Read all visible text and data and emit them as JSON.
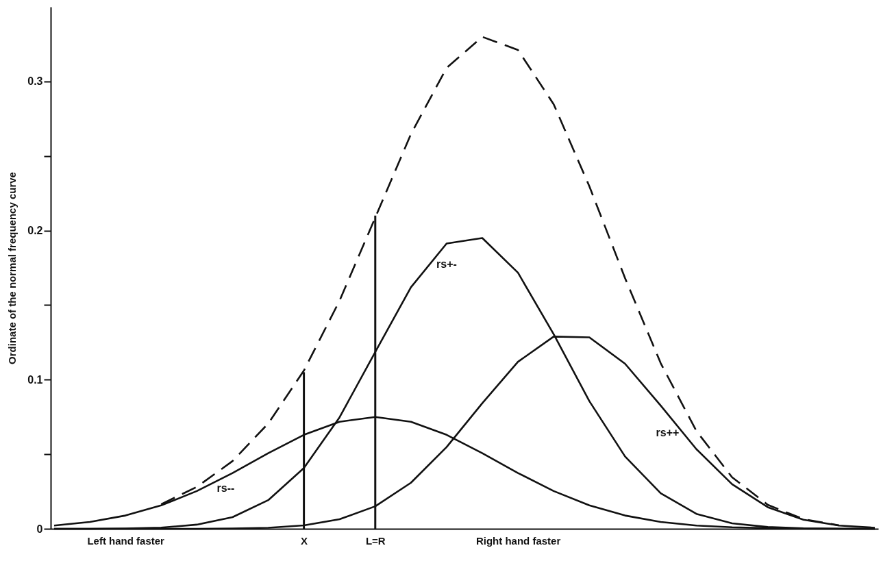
{
  "chart_data": {
    "type": "line",
    "ylabel": "Ordinate of the normal frequency curve",
    "ylim": [
      0,
      0.35
    ],
    "yticks": [
      0,
      {
        "value": 0.05,
        "label": null
      },
      0.1,
      {
        "value": 0.15,
        "label": null
      },
      0.2,
      {
        "value": 0.25,
        "label": null
      },
      0.3
    ],
    "categories": [
      null,
      null,
      "Left hand faster",
      null,
      null,
      null,
      null,
      "X",
      null,
      "L=R",
      null,
      null,
      null,
      "Right hand faster",
      null,
      null,
      null,
      null,
      null,
      null,
      null,
      null,
      null,
      null
    ],
    "series": [
      {
        "name": "rs--",
        "color": "#111111",
        "line_style": "solid",
        "values": [
          0.0022,
          0.0046,
          0.0089,
          0.0157,
          0.0253,
          0.0374,
          0.0507,
          0.063,
          0.0718,
          0.075,
          0.0718,
          0.063,
          0.0507,
          0.0374,
          0.0253,
          0.0157,
          0.0089,
          0.0046,
          0.0022,
          0.001,
          0.0004,
          0.0001,
          0,
          0
        ]
      },
      {
        "name": "rs+-",
        "color": "#111111",
        "line_style": "solid",
        "values": [
          0,
          0,
          0.0002,
          0.0008,
          0.0028,
          0.0078,
          0.0192,
          0.0408,
          0.0748,
          0.1186,
          0.162,
          0.1913,
          0.195,
          0.1717,
          0.1305,
          0.0856,
          0.0485,
          0.0238,
          0.01,
          0.0037,
          0.0012,
          0.0003,
          0.0001,
          0
        ]
      },
      {
        "name": "rs++",
        "color": "#111111",
        "line_style": "solid",
        "values": [
          0,
          0,
          0,
          0,
          0,
          0.0002,
          0.0007,
          0.0023,
          0.0064,
          0.0151,
          0.0309,
          0.0548,
          0.0842,
          0.112,
          0.1289,
          0.1284,
          0.1107,
          0.0826,
          0.0534,
          0.0299,
          0.0145,
          0.0061,
          0.0022,
          0.0007
        ]
      },
      {
        "color": "#111111",
        "line_style": "dashed",
        "values": [
          null,
          null,
          null,
          0.0165,
          0.0281,
          0.0454,
          0.0706,
          0.1061,
          0.153,
          0.2087,
          0.2647,
          0.3091,
          0.3299,
          0.3211,
          0.2847,
          0.2297,
          0.1681,
          0.111,
          0.0656,
          0.0346,
          0.0161,
          0.0065,
          0.0023,
          null
        ]
      },
      {
        "type": "bar",
        "color": "#111111",
        "values": [
          null,
          null,
          null,
          null,
          null,
          null,
          null,
          0.105,
          null,
          0.21,
          null,
          null,
          null,
          null,
          null,
          null,
          null,
          null,
          null,
          null,
          null,
          null,
          null,
          null
        ]
      }
    ],
    "grid": false,
    "marker": "none"
  }
}
